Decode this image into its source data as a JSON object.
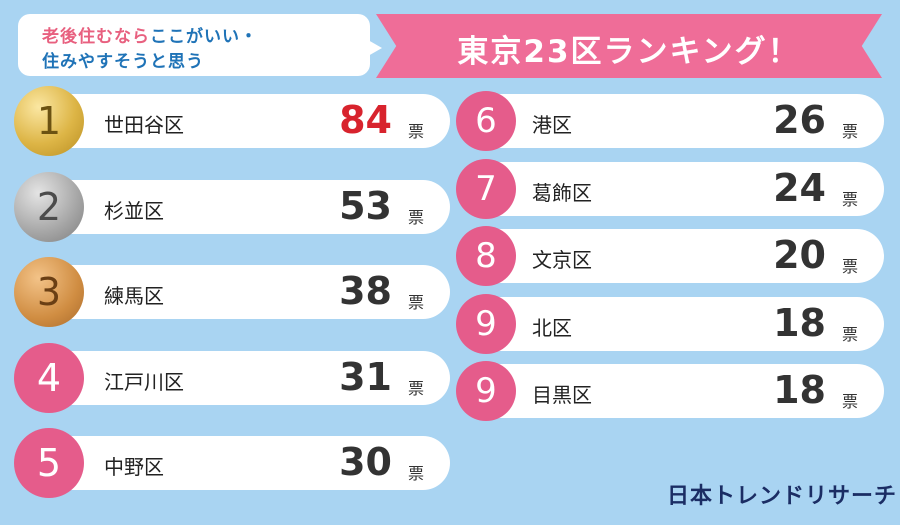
{
  "header": {
    "question_line1_pink": "老後住むなら",
    "question_line1_blue": "ここがいい・",
    "question_line2": "住みやすそうと思う",
    "title": "東京23区ランキング！"
  },
  "unit_label": "票",
  "brand": "日本トレンドリサーチ",
  "colors": {
    "background": "#a9d4f2",
    "accent_pink": "#ef6d98",
    "highlight_red": "#d8232d"
  },
  "chart_data": {
    "type": "bar",
    "title": "東京23区ランキング！",
    "ranks": [
      "1",
      "2",
      "3",
      "4",
      "5",
      "6",
      "7",
      "8",
      "9",
      "9"
    ],
    "categories": [
      "世田谷区",
      "杉並区",
      "練馬区",
      "江戸川区",
      "中野区",
      "港区",
      "葛飾区",
      "文京区",
      "北区",
      "目黒区"
    ],
    "values": [
      84,
      53,
      38,
      31,
      30,
      26,
      24,
      20,
      18,
      18
    ],
    "unit": "票"
  }
}
